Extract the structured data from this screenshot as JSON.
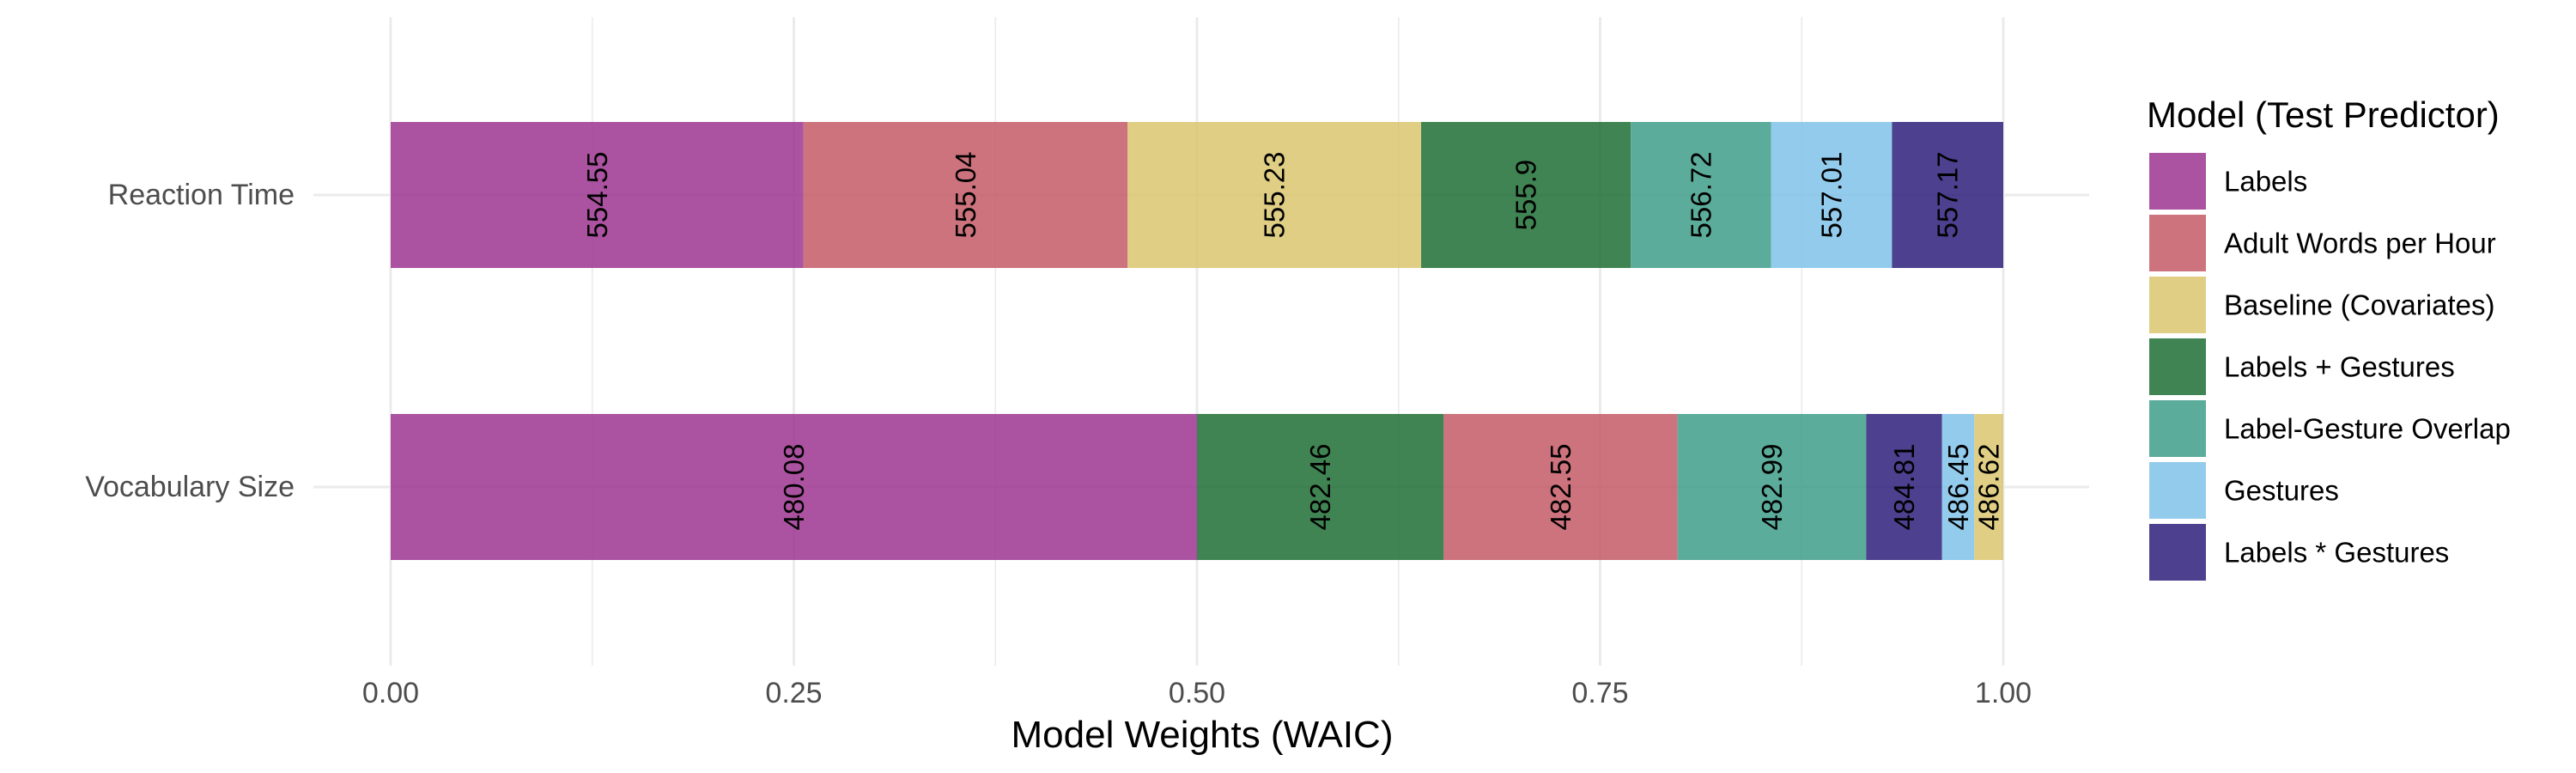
{
  "chart_data": {
    "type": "bar",
    "orientation": "horizontal",
    "stacked": true,
    "title": "",
    "xlabel": "Model Weights (WAIC)",
    "ylabel": "",
    "xlim": [
      0,
      1
    ],
    "x_ticks": [
      "0.00",
      "0.25",
      "0.50",
      "0.75",
      "1.00"
    ],
    "grid": true,
    "legend_position": "right",
    "legend": {
      "title": "Model (Test Predictor)",
      "entries": [
        {
          "name": "Labels",
          "color": "#9C3590"
        },
        {
          "name": "Adult Words per Hour",
          "color": "#C45A66"
        },
        {
          "name": "Baseline (Covariates)",
          "color": "#D9C56E"
        },
        {
          "name": "Labels + Gestures",
          "color": "#1F6E35"
        },
        {
          "name": "Label-Gesture Overlap",
          "color": "#3F9E8A"
        },
        {
          "name": "Gestures",
          "color": "#80C2EA"
        },
        {
          "name": "Labels * Gestures",
          "color": "#2E1F7A"
        }
      ]
    },
    "categories": [
      {
        "name": "Reaction Time",
        "segments": [
          {
            "model": "Labels",
            "value": 0.256,
            "label": "554.55"
          },
          {
            "model": "Adult Words per Hour",
            "value": 0.201,
            "label": "555.04"
          },
          {
            "model": "Baseline (Covariates)",
            "value": 0.182,
            "label": "555.23"
          },
          {
            "model": "Labels + Gestures",
            "value": 0.13,
            "label": "555.9"
          },
          {
            "model": "Label-Gesture Overlap",
            "value": 0.087,
            "label": "556.72"
          },
          {
            "model": "Gestures",
            "value": 0.075,
            "label": "557.01"
          },
          {
            "model": "Labels * Gestures",
            "value": 0.069,
            "label": "557.17"
          }
        ]
      },
      {
        "name": "Vocabulary Size",
        "segments": [
          {
            "model": "Labels",
            "value": 0.5,
            "label": "480.08"
          },
          {
            "model": "Labels + Gestures",
            "value": 0.153,
            "label": "482.46"
          },
          {
            "model": "Adult Words per Hour",
            "value": 0.145,
            "label": "482.55"
          },
          {
            "model": "Label-Gesture Overlap",
            "value": 0.117,
            "label": "482.99"
          },
          {
            "model": "Labels * Gestures",
            "value": 0.047,
            "label": "484.81"
          },
          {
            "model": "Gestures",
            "value": 0.02,
            "label": "486.45"
          },
          {
            "model": "Baseline (Covariates)",
            "value": 0.018,
            "label": "486.62"
          }
        ]
      }
    ]
  }
}
